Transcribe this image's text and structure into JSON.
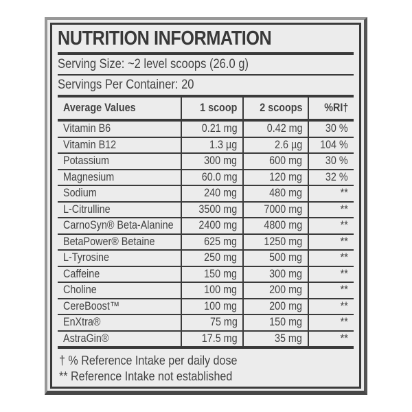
{
  "label": {
    "title": "NUTRITION INFORMATION",
    "serving_size": "Serving Size: ~2 level scoops (26.0 g)",
    "servings_per_container": "Servings Per Container: 20",
    "table": {
      "headers": [
        "Average Values",
        "1 scoop",
        "2 scoops",
        "%RI†"
      ],
      "rows": [
        {
          "name": "Vitamin B6",
          "one_scoop": "0.21 mg",
          "two_scoops": "0.42 mg",
          "ri": "30 %"
        },
        {
          "name": "Vitamin B12",
          "one_scoop": "1.3 µg",
          "two_scoops": "2.6 µg",
          "ri": "104 %"
        },
        {
          "name": "Potassium",
          "one_scoop": "300 mg",
          "two_scoops": "600 mg",
          "ri": "30 %"
        },
        {
          "name": "Magnesium",
          "one_scoop": "60.0 mg",
          "two_scoops": "120 mg",
          "ri": "32 %"
        },
        {
          "name": "Sodium",
          "one_scoop": "240 mg",
          "two_scoops": "480 mg",
          "ri": "**"
        },
        {
          "name": "L-Citrulline",
          "one_scoop": "3500 mg",
          "two_scoops": "7000 mg",
          "ri": "**"
        },
        {
          "name": "CarnoSyn® Beta-Alanine",
          "one_scoop": "2400 mg",
          "two_scoops": "4800 mg",
          "ri": "**"
        },
        {
          "name": "BetaPower® Betaine",
          "one_scoop": "625 mg",
          "two_scoops": "1250 mg",
          "ri": "**"
        },
        {
          "name": "L-Tyrosine",
          "one_scoop": "250 mg",
          "two_scoops": "500 mg",
          "ri": "**"
        },
        {
          "name": "Caffeine",
          "one_scoop": "150 mg",
          "two_scoops": "300 mg",
          "ri": "**"
        },
        {
          "name": "Choline",
          "one_scoop": "100 mg",
          "two_scoops": "200 mg",
          "ri": "**"
        },
        {
          "name": "CereBoost™",
          "one_scoop": "100 mg",
          "two_scoops": "200 mg",
          "ri": "**"
        },
        {
          "name": "EnXtra®",
          "one_scoop": "75 mg",
          "two_scoops": "150 mg",
          "ri": "**"
        },
        {
          "name": "AstraGin®",
          "one_scoop": "17.5 mg",
          "two_scoops": "35 mg",
          "ri": "**"
        }
      ]
    },
    "footnotes": [
      "† % Reference Intake per daily dose",
      "** Reference Intake not established"
    ],
    "colors": {
      "label_background": "#ececec",
      "border_dark": "#3a3a3a",
      "frame_light": "#979797",
      "frame_shadow": "#474747",
      "text": "#424242"
    }
  }
}
